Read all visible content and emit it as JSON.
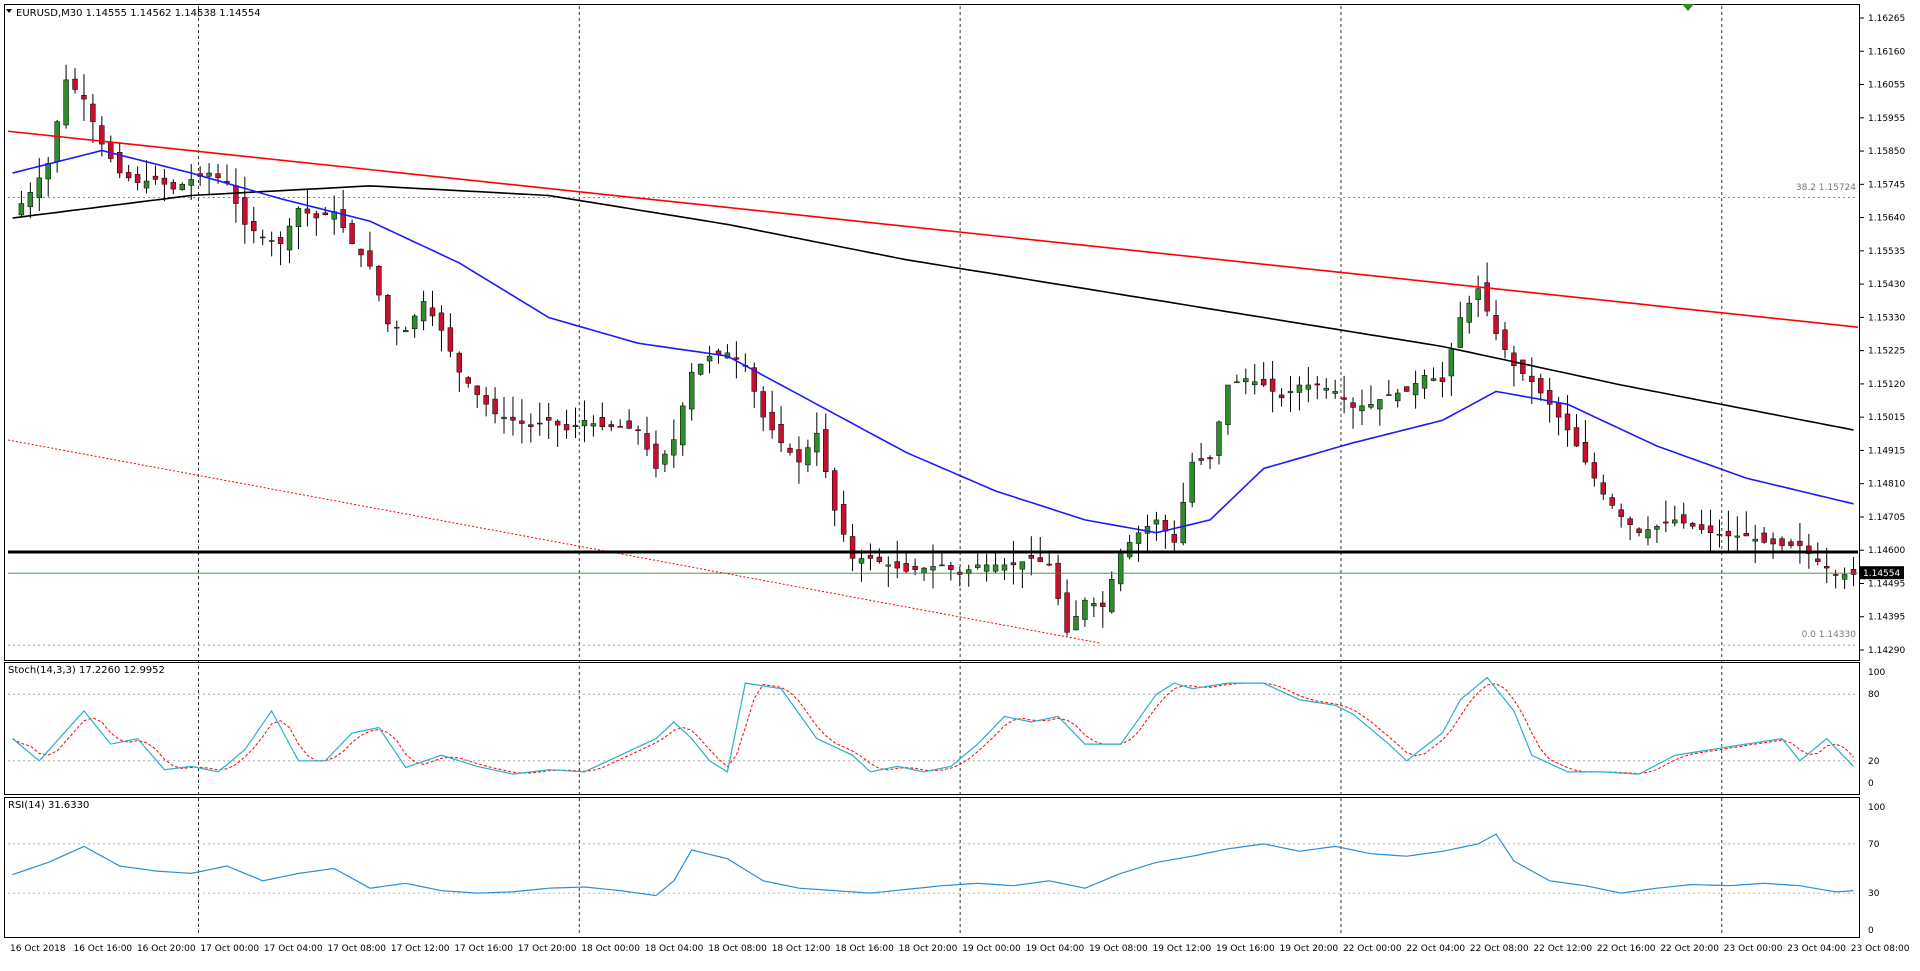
{
  "header": {
    "main_label": "EURUSD,M30  1.14555 1.14562 1.14538 1.14554",
    "stoch_label": "Stoch(14,3,3) 17.2260 12.9952",
    "rsi_label": "RSI(14) 31.6330"
  },
  "price_axis": {
    "ticks": [
      "1.16265",
      "1.16160",
      "1.16055",
      "1.15955",
      "1.15850",
      "1.15745",
      "1.15640",
      "1.15535",
      "1.15430",
      "1.15330",
      "1.15225",
      "1.15120",
      "1.15015",
      "1.14915",
      "1.14810",
      "1.14705",
      "1.14600",
      "1.14495",
      "1.14395",
      "1.14290"
    ],
    "current_price": "1.14554"
  },
  "stoch_axis": {
    "ticks": [
      "100",
      "80",
      "20",
      "0"
    ]
  },
  "rsi_axis": {
    "ticks": [
      "100",
      "70",
      "30",
      "0"
    ]
  },
  "fibo_labels": {
    "upper": "38.2  1.15724",
    "lower": "0.0  1.14330"
  },
  "time_axis": {
    "labels": [
      "16 Oct 2018",
      "16 Oct 16:00",
      "16 Oct 20:00",
      "17 Oct 00:00",
      "17 Oct 04:00",
      "17 Oct 08:00",
      "17 Oct 12:00",
      "17 Oct 16:00",
      "17 Oct 20:00",
      "18 Oct 00:00",
      "18 Oct 04:00",
      "18 Oct 08:00",
      "18 Oct 12:00",
      "18 Oct 16:00",
      "18 Oct 20:00",
      "19 Oct 00:00",
      "19 Oct 04:00",
      "19 Oct 08:00",
      "19 Oct 12:00",
      "19 Oct 16:00",
      "19 Oct 20:00",
      "22 Oct 00:00",
      "22 Oct 04:00",
      "22 Oct 08:00",
      "22 Oct 12:00",
      "22 Oct 16:00",
      "22 Oct 20:00",
      "23 Oct 00:00",
      "23 Oct 04:00",
      "23 Oct 08:00"
    ]
  },
  "colors": {
    "bull": "#2e8b2e",
    "bear": "#c8102e",
    "wick": "#000000",
    "ma_fast": "#1a1aff",
    "ma_slow": "#000000",
    "trend_red": "#ff0000",
    "support": "#000000",
    "price_line": "#2e8b2e",
    "stoch_main": "#2ab0c8",
    "stoch_signal": "#ff0000",
    "rsi": "#2a8fd8",
    "grid": "#000000",
    "text": "#000000"
  },
  "chart_data": {
    "type": "candlestick",
    "symbol": "EURUSD",
    "timeframe": "M30",
    "ylim": [
      1.1429,
      1.1632
    ],
    "close_anchors": [
      [
        0,
        1.1567
      ],
      [
        2,
        1.1574
      ],
      [
        4,
        1.1583
      ],
      [
        6,
        1.1609
      ],
      [
        8,
        1.1603
      ],
      [
        10,
        1.1589
      ],
      [
        12,
        1.158
      ],
      [
        14,
        1.1577
      ],
      [
        16,
        1.1578
      ],
      [
        18,
        1.1575
      ],
      [
        20,
        1.1578
      ],
      [
        22,
        1.158
      ],
      [
        24,
        1.1577
      ],
      [
        26,
        1.1564
      ],
      [
        28,
        1.156
      ],
      [
        30,
        1.1558
      ],
      [
        32,
        1.1569
      ],
      [
        34,
        1.1566
      ],
      [
        36,
        1.1568
      ],
      [
        38,
        1.1558
      ],
      [
        40,
        1.1551
      ],
      [
        42,
        1.1533
      ],
      [
        44,
        1.1531
      ],
      [
        46,
        1.154
      ],
      [
        48,
        1.1531
      ],
      [
        50,
        1.1518
      ],
      [
        52,
        1.1511
      ],
      [
        54,
        1.1505
      ],
      [
        56,
        1.1503
      ],
      [
        58,
        1.1501
      ],
      [
        60,
        1.1503
      ],
      [
        62,
        1.15
      ],
      [
        64,
        1.1503
      ],
      [
        66,
        1.1501
      ],
      [
        68,
        1.1501
      ],
      [
        70,
        1.15
      ],
      [
        72,
        1.1488
      ],
      [
        74,
        1.1497
      ],
      [
        76,
        1.1518
      ],
      [
        78,
        1.1523
      ],
      [
        80,
        1.1524
      ],
      [
        82,
        1.152
      ],
      [
        84,
        1.1504
      ],
      [
        86,
        1.1496
      ],
      [
        88,
        1.149
      ],
      [
        90,
        1.1499
      ],
      [
        92,
        1.1475
      ],
      [
        94,
        1.146
      ],
      [
        96,
        1.146
      ],
      [
        98,
        1.1458
      ],
      [
        100,
        1.1456
      ],
      [
        102,
        1.1457
      ],
      [
        104,
        1.1458
      ],
      [
        106,
        1.1455
      ],
      [
        108,
        1.1458
      ],
      [
        110,
        1.1458
      ],
      [
        112,
        1.1458
      ],
      [
        114,
        1.146
      ],
      [
        116,
        1.1458
      ],
      [
        118,
        1.1437
      ],
      [
        120,
        1.1447
      ],
      [
        122,
        1.1445
      ],
      [
        124,
        1.1462
      ],
      [
        126,
        1.1468
      ],
      [
        128,
        1.1472
      ],
      [
        130,
        1.1465
      ],
      [
        132,
        1.149
      ],
      [
        134,
        1.1491
      ],
      [
        136,
        1.1514
      ],
      [
        138,
        1.1516
      ],
      [
        140,
        1.1514
      ],
      [
        142,
        1.151
      ],
      [
        144,
        1.1514
      ],
      [
        146,
        1.1514
      ],
      [
        148,
        1.1512
      ],
      [
        150,
        1.1507
      ],
      [
        152,
        1.1508
      ],
      [
        154,
        1.1511
      ],
      [
        156,
        1.1512
      ],
      [
        158,
        1.1517
      ],
      [
        160,
        1.1515
      ],
      [
        162,
        1.1535
      ],
      [
        164,
        1.1544
      ],
      [
        166,
        1.153
      ],
      [
        168,
        1.152
      ],
      [
        170,
        1.1515
      ],
      [
        172,
        1.1508
      ],
      [
        174,
        1.15
      ],
      [
        176,
        1.149
      ],
      [
        178,
        1.148
      ],
      [
        180,
        1.1473
      ],
      [
        182,
        1.1468
      ],
      [
        184,
        1.147
      ],
      [
        186,
        1.1472
      ],
      [
        188,
        1.147
      ],
      [
        190,
        1.1468
      ],
      [
        192,
        1.1467
      ],
      [
        194,
        1.1467
      ],
      [
        196,
        1.1465
      ],
      [
        198,
        1.1464
      ],
      [
        200,
        1.1464
      ],
      [
        202,
        1.1459
      ],
      [
        204,
        1.1455
      ],
      [
        206,
        1.1455
      ]
    ],
    "ma_fast_anchors": [
      [
        0,
        1.158
      ],
      [
        10,
        1.1587
      ],
      [
        20,
        1.158
      ],
      [
        30,
        1.1572
      ],
      [
        40,
        1.1565
      ],
      [
        50,
        1.1552
      ],
      [
        60,
        1.1535
      ],
      [
        70,
        1.1527
      ],
      [
        80,
        1.1523
      ],
      [
        90,
        1.1508
      ],
      [
        100,
        1.1493
      ],
      [
        110,
        1.1481
      ],
      [
        120,
        1.1472
      ],
      [
        128,
        1.1468
      ],
      [
        134,
        1.1472
      ],
      [
        140,
        1.1488
      ],
      [
        150,
        1.1496
      ],
      [
        160,
        1.1503
      ],
      [
        166,
        1.1512
      ],
      [
        174,
        1.1508
      ],
      [
        184,
        1.1495
      ],
      [
        194,
        1.1485
      ],
      [
        206,
        1.1477
      ]
    ],
    "ma_slow_anchors": [
      [
        0,
        1.1566
      ],
      [
        20,
        1.1573
      ],
      [
        40,
        1.1576
      ],
      [
        60,
        1.1573
      ],
      [
        80,
        1.1564
      ],
      [
        100,
        1.1553
      ],
      [
        120,
        1.1544
      ],
      [
        140,
        1.1535
      ],
      [
        160,
        1.1526
      ],
      [
        180,
        1.1514
      ],
      [
        206,
        1.15
      ]
    ],
    "trendline_red": [
      [
        0,
        1.1593
      ],
      [
        206,
        1.1532
      ]
    ],
    "support_level": 1.1462,
    "stoch_anchors": [
      [
        0,
        40
      ],
      [
        3,
        20
      ],
      [
        8,
        65
      ],
      [
        11,
        35
      ],
      [
        14,
        40
      ],
      [
        17,
        12
      ],
      [
        20,
        15
      ],
      [
        23,
        10
      ],
      [
        26,
        30
      ],
      [
        29,
        65
      ],
      [
        32,
        20
      ],
      [
        35,
        20
      ],
      [
        38,
        45
      ],
      [
        41,
        50
      ],
      [
        44,
        14
      ],
      [
        48,
        25
      ],
      [
        52,
        15
      ],
      [
        56,
        8
      ],
      [
        60,
        12
      ],
      [
        64,
        10
      ],
      [
        68,
        25
      ],
      [
        72,
        40
      ],
      [
        74,
        55
      ],
      [
        76,
        40
      ],
      [
        78,
        20
      ],
      [
        80,
        10
      ],
      [
        82,
        90
      ],
      [
        86,
        85
      ],
      [
        90,
        40
      ],
      [
        94,
        25
      ],
      [
        96,
        10
      ],
      [
        99,
        15
      ],
      [
        102,
        10
      ],
      [
        105,
        15
      ],
      [
        108,
        35
      ],
      [
        111,
        60
      ],
      [
        114,
        55
      ],
      [
        117,
        60
      ],
      [
        120,
        35
      ],
      [
        124,
        35
      ],
      [
        128,
        80
      ],
      [
        130,
        90
      ],
      [
        132,
        85
      ],
      [
        136,
        90
      ],
      [
        140,
        90
      ],
      [
        144,
        75
      ],
      [
        148,
        70
      ],
      [
        150,
        62
      ],
      [
        154,
        35
      ],
      [
        156,
        20
      ],
      [
        160,
        45
      ],
      [
        162,
        75
      ],
      [
        165,
        95
      ],
      [
        168,
        65
      ],
      [
        170,
        25
      ],
      [
        174,
        10
      ],
      [
        178,
        10
      ],
      [
        182,
        8
      ],
      [
        186,
        25
      ],
      [
        190,
        30
      ],
      [
        194,
        35
      ],
      [
        198,
        40
      ],
      [
        200,
        20
      ],
      [
        203,
        40
      ],
      [
        206,
        15
      ]
    ],
    "rsi_anchors": [
      [
        0,
        45
      ],
      [
        4,
        55
      ],
      [
        8,
        68
      ],
      [
        12,
        52
      ],
      [
        16,
        48
      ],
      [
        20,
        46
      ],
      [
        24,
        52
      ],
      [
        28,
        40
      ],
      [
        32,
        46
      ],
      [
        36,
        50
      ],
      [
        40,
        34
      ],
      [
        44,
        38
      ],
      [
        48,
        32
      ],
      [
        52,
        30
      ],
      [
        56,
        31
      ],
      [
        60,
        34
      ],
      [
        64,
        35
      ],
      [
        68,
        32
      ],
      [
        72,
        28
      ],
      [
        74,
        40
      ],
      [
        76,
        65
      ],
      [
        80,
        58
      ],
      [
        84,
        40
      ],
      [
        88,
        34
      ],
      [
        92,
        32
      ],
      [
        96,
        30
      ],
      [
        100,
        33
      ],
      [
        104,
        36
      ],
      [
        108,
        38
      ],
      [
        112,
        36
      ],
      [
        116,
        40
      ],
      [
        120,
        34
      ],
      [
        124,
        46
      ],
      [
        128,
        55
      ],
      [
        132,
        60
      ],
      [
        136,
        66
      ],
      [
        140,
        70
      ],
      [
        144,
        64
      ],
      [
        148,
        68
      ],
      [
        152,
        62
      ],
      [
        156,
        60
      ],
      [
        160,
        64
      ],
      [
        164,
        70
      ],
      [
        166,
        78
      ],
      [
        168,
        56
      ],
      [
        172,
        40
      ],
      [
        176,
        36
      ],
      [
        180,
        30
      ],
      [
        184,
        34
      ],
      [
        188,
        37
      ],
      [
        192,
        36
      ],
      [
        196,
        38
      ],
      [
        200,
        36
      ],
      [
        204,
        31
      ],
      [
        206,
        32
      ]
    ],
    "x_count": 207
  }
}
